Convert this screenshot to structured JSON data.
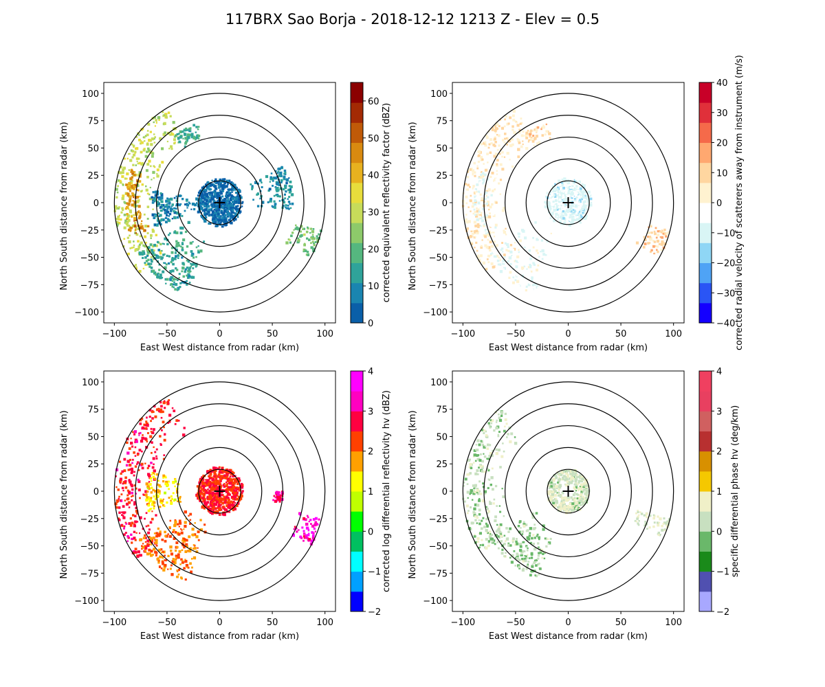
{
  "title": "117BRX Sao Borja - 2018-12-12 1213 Z -  Elev = 0.5",
  "chart_data": [
    {
      "type": "heatmap",
      "panel": "top-left",
      "field": "corrected equivalent reflectivity factor",
      "xlabel": "East West distance from radar (km)",
      "ylabel": "North South distance from radar (km)",
      "xlim": [
        -110,
        110
      ],
      "ylim": [
        -110,
        110
      ],
      "xticks": [
        -100,
        -50,
        0,
        50,
        100
      ],
      "yticks": [
        -100,
        -75,
        -50,
        -25,
        0,
        25,
        50,
        75,
        100
      ],
      "range_rings_km": [
        20,
        40,
        60,
        80,
        100
      ],
      "radar_marker": [
        0,
        0
      ],
      "colorbar": {
        "label": "corrected equivalent reflectivity factor (dBZ)",
        "min": 0,
        "max": 65,
        "ticks": [
          0,
          10,
          20,
          30,
          40,
          50,
          60
        ],
        "colors": [
          "#0a5fa8",
          "#1a85b0",
          "#2fa39a",
          "#55b77f",
          "#8dca6a",
          "#c7dc5a",
          "#e8dd3c",
          "#e8b11f",
          "#d98a10",
          "#c05a08",
          "#a32a04",
          "#8b0000"
        ]
      },
      "echo_regions": [
        {
          "az": [
            230,
            330
          ],
          "r": [
            60,
            100
          ],
          "val": 30
        },
        {
          "az": [
            250,
            290
          ],
          "r": [
            70,
            90
          ],
          "val": 45
        },
        {
          "az": [
            200,
            240
          ],
          "r": [
            30,
            90
          ],
          "val": 15
        },
        {
          "az": [
            0,
            360
          ],
          "r": [
            0,
            22
          ],
          "val": 4
        },
        {
          "az": [
            250,
            280
          ],
          "r": [
            20,
            65
          ],
          "val": 8
        },
        {
          "az": [
            60,
            95
          ],
          "r": [
            30,
            70
          ],
          "val": 10
        },
        {
          "az": [
            105,
            120
          ],
          "r": [
            70,
            100
          ],
          "val": 22
        },
        {
          "az": [
            325,
            345
          ],
          "r": [
            60,
            75
          ],
          "val": 15
        }
      ]
    },
    {
      "type": "heatmap",
      "panel": "top-right",
      "field": "corrected radial velocity of scatterers away from instrument",
      "xlabel": "East West distance from radar (km)",
      "ylabel": "North South distance from radar (km)",
      "xlim": [
        -110,
        110
      ],
      "ylim": [
        -110,
        110
      ],
      "xticks": [
        -100,
        -50,
        0,
        50,
        100
      ],
      "yticks": [
        -100,
        -75,
        -50,
        -25,
        0,
        25,
        50,
        75,
        100
      ],
      "range_rings_km": [
        20,
        40,
        60,
        80,
        100
      ],
      "radar_marker": [
        0,
        0
      ],
      "colorbar": {
        "label": "corrected radial velocity of scatterers away from instrument (m/s)",
        "min": -40,
        "max": 40,
        "ticks": [
          -40,
          -30,
          -20,
          -10,
          0,
          10,
          20,
          30,
          40
        ],
        "colors": [
          "#1400ff",
          "#2a55f5",
          "#4fa3f5",
          "#8fd6f5",
          "#d9f5f5",
          "#ffffff",
          "#fff2d0",
          "#ffd6a0",
          "#ffa870",
          "#f56a4a",
          "#e0303a",
          "#c80028"
        ]
      },
      "echo_regions": [
        {
          "az": [
            230,
            330
          ],
          "r": [
            60,
            100
          ],
          "val": 6
        },
        {
          "az": [
            250,
            290
          ],
          "r": [
            70,
            90
          ],
          "val": -6
        },
        {
          "az": [
            200,
            240
          ],
          "r": [
            30,
            90
          ],
          "val": -5
        },
        {
          "az": [
            0,
            360
          ],
          "r": [
            0,
            22
          ],
          "val": -8
        },
        {
          "az": [
            105,
            120
          ],
          "r": [
            70,
            100
          ],
          "val": 10
        },
        {
          "az": [
            325,
            345
          ],
          "r": [
            60,
            75
          ],
          "val": 8
        }
      ]
    },
    {
      "type": "heatmap",
      "panel": "bottom-left",
      "field": "corrected log differential reflectivity hv",
      "xlabel": "East West distance from radar (km)",
      "ylabel": "North South distance from radar (km)",
      "xlim": [
        -110,
        110
      ],
      "ylim": [
        -110,
        110
      ],
      "xticks": [
        -100,
        -50,
        0,
        50,
        100
      ],
      "yticks": [
        -100,
        -75,
        -50,
        -25,
        0,
        25,
        50,
        75,
        100
      ],
      "range_rings_km": [
        20,
        40,
        60,
        80,
        100
      ],
      "radar_marker": [
        0,
        0
      ],
      "colorbar": {
        "label": "corrected log differential reflectivity hv (dBZ)",
        "min": -2,
        "max": 4,
        "ticks": [
          -2,
          -1,
          0,
          1,
          2,
          3,
          4
        ],
        "colors": [
          "#0000ff",
          "#00a0ff",
          "#00ffff",
          "#00c060",
          "#00ff00",
          "#c0ff00",
          "#ffff00",
          "#ffa000",
          "#ff4000",
          "#ff0040",
          "#ff00c0",
          "#ff00ff"
        ]
      },
      "echo_regions": [
        {
          "az": [
            230,
            330
          ],
          "r": [
            60,
            100
          ],
          "val": 2.6
        },
        {
          "az": [
            255,
            285
          ],
          "r": [
            35,
            70
          ],
          "val": 1.4
        },
        {
          "az": [
            200,
            240
          ],
          "r": [
            30,
            90
          ],
          "val": 2.0
        },
        {
          "az": [
            0,
            360
          ],
          "r": [
            0,
            22
          ],
          "val": 2.5
        },
        {
          "az": [
            105,
            120
          ],
          "r": [
            75,
            100
          ],
          "val": 3.4
        },
        {
          "az": [
            90,
            100
          ],
          "r": [
            50,
            60
          ],
          "val": 3.0
        }
      ]
    },
    {
      "type": "heatmap",
      "panel": "bottom-right",
      "field": "specific differential phase hv",
      "xlabel": "East West distance from radar (km)",
      "ylabel": "North South distance from radar (km)",
      "xlim": [
        -110,
        110
      ],
      "ylim": [
        -110,
        110
      ],
      "xticks": [
        -100,
        -50,
        0,
        50,
        100
      ],
      "yticks": [
        -100,
        -75,
        -50,
        -25,
        0,
        25,
        50,
        75,
        100
      ],
      "range_rings_km": [
        20,
        40,
        60,
        80,
        100
      ],
      "radar_marker": [
        0,
        0
      ],
      "colorbar": {
        "label": "specific differential phase hv (deg/km)",
        "min": -2,
        "max": 4,
        "ticks": [
          -2,
          -1,
          0,
          1,
          2,
          3,
          4
        ],
        "colors": [
          "#a8a8ff",
          "#5050b0",
          "#1a8a1a",
          "#6ab86a",
          "#c8e0c0",
          "#f0f0c8",
          "#f5c800",
          "#d89000",
          "#b83030",
          "#d06060",
          "#e84060",
          "#f04060"
        ]
      },
      "echo_regions": [
        {
          "az": [
            235,
            320
          ],
          "r": [
            60,
            100
          ],
          "val": 0.2
        },
        {
          "az": [
            200,
            240
          ],
          "r": [
            30,
            85
          ],
          "val": 0.1
        },
        {
          "az": [
            0,
            360
          ],
          "r": [
            5,
            20
          ],
          "val": 0.4
        },
        {
          "az": [
            105,
            115
          ],
          "r": [
            65,
            100
          ],
          "val": 0.5
        }
      ]
    }
  ]
}
